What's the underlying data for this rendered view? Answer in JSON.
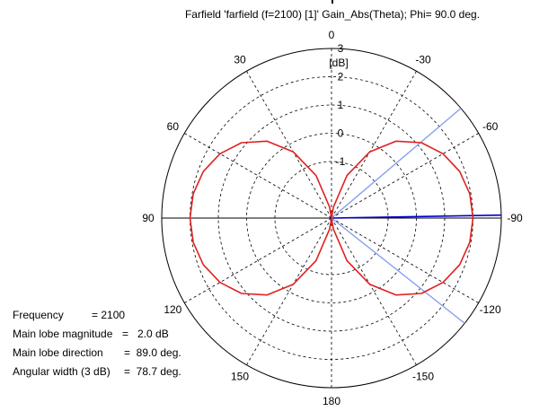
{
  "title": "Farfield 'farfield (f=2100) [1]' Gain_Abs(Theta); Phi=  90.0 deg.",
  "info": [
    {
      "label": "Frequency",
      "value": "= 2100"
    },
    {
      "label": "Main lobe magnitude",
      "value": "=   2.0 dB"
    },
    {
      "label": "Main lobe direction",
      "value": "=  89.0 deg."
    },
    {
      "label": "Angular width (3 dB)",
      "value": "=  78.7 deg."
    }
  ],
  "chart_data": {
    "type": "polar-line",
    "title": "Farfield 'farfield (f=2100) [1]' Gain_Abs(Theta); Phi=  90.0 deg.",
    "unit_label": "[dB]",
    "magnitude_ticks": [
      "3",
      "2",
      "1",
      "0",
      "-1"
    ],
    "magnitude_range": [
      -3,
      3
    ],
    "angle_ticks": [
      {
        "angle": 0,
        "label": "0"
      },
      {
        "angle": -30,
        "label": "-30"
      },
      {
        "angle": -60,
        "label": "-60"
      },
      {
        "angle": -90,
        "label": "-90"
      },
      {
        "angle": -120,
        "label": "-120"
      },
      {
        "angle": -150,
        "label": "-150"
      },
      {
        "angle": 180,
        "label": "180"
      },
      {
        "angle": 150,
        "label": "150"
      },
      {
        "angle": 120,
        "label": "120"
      },
      {
        "angle": 90,
        "label": "90"
      },
      {
        "angle": 60,
        "label": "60"
      },
      {
        "angle": 30,
        "label": "30"
      }
    ],
    "series": [
      {
        "color": "#e02020",
        "points": [
          {
            "theta": 0,
            "gain": -3
          },
          {
            "theta": 10,
            "gain": -2.6
          },
          {
            "theta": 20,
            "gain": -1.4
          },
          {
            "theta": 30,
            "gain": -0.3
          },
          {
            "theta": 40,
            "gain": 0.55
          },
          {
            "theta": 50,
            "gain": 1.15
          },
          {
            "theta": 60,
            "gain": 1.55
          },
          {
            "theta": 70,
            "gain": 1.82
          },
          {
            "theta": 80,
            "gain": 1.96
          },
          {
            "theta": 90,
            "gain": 2.0
          },
          {
            "theta": 100,
            "gain": 1.96
          },
          {
            "theta": 110,
            "gain": 1.82
          },
          {
            "theta": 120,
            "gain": 1.55
          },
          {
            "theta": 130,
            "gain": 1.15
          },
          {
            "theta": 140,
            "gain": 0.55
          },
          {
            "theta": 150,
            "gain": -0.3
          },
          {
            "theta": 160,
            "gain": -1.4
          },
          {
            "theta": 170,
            "gain": -2.6
          },
          {
            "theta": 180,
            "gain": -3
          },
          {
            "theta": 190,
            "gain": -2.6
          },
          {
            "theta": 200,
            "gain": -1.4
          },
          {
            "theta": 210,
            "gain": -0.3
          },
          {
            "theta": 220,
            "gain": 0.55
          },
          {
            "theta": 230,
            "gain": 1.15
          },
          {
            "theta": 240,
            "gain": 1.55
          },
          {
            "theta": 250,
            "gain": 1.82
          },
          {
            "theta": 260,
            "gain": 1.96
          },
          {
            "theta": 270,
            "gain": 2.0
          },
          {
            "theta": 280,
            "gain": 1.96
          },
          {
            "theta": 290,
            "gain": 1.82
          },
          {
            "theta": 300,
            "gain": 1.55
          },
          {
            "theta": 310,
            "gain": 1.15
          },
          {
            "theta": 320,
            "gain": 0.55
          },
          {
            "theta": 330,
            "gain": -0.3
          },
          {
            "theta": 340,
            "gain": -1.4
          },
          {
            "theta": 350,
            "gain": -2.6
          },
          {
            "theta": 360,
            "gain": -3
          }
        ]
      }
    ],
    "markers": [
      {
        "kind": "main-lobe-direction",
        "angle": -89,
        "color": "#0000cc"
      },
      {
        "kind": "beamwidth-3db",
        "angle": -49.65,
        "color": "#8aa0f0"
      },
      {
        "kind": "beamwidth-3db",
        "angle": -128.35,
        "color": "#8aa0f0"
      }
    ],
    "grid": true
  }
}
